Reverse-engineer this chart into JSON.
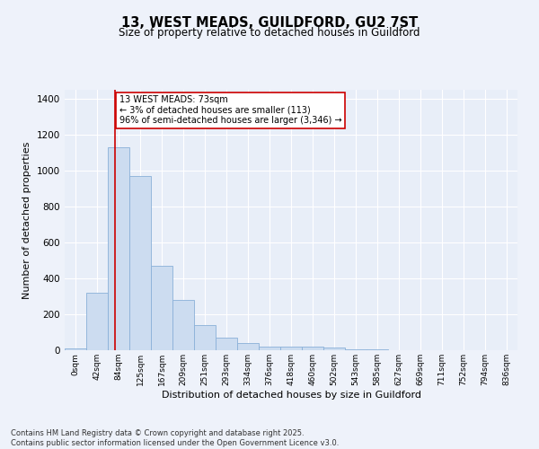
{
  "title_line1": "13, WEST MEADS, GUILDFORD, GU2 7ST",
  "title_line2": "Size of property relative to detached houses in Guildford",
  "xlabel": "Distribution of detached houses by size in Guildford",
  "ylabel": "Number of detached properties",
  "bar_color": "#ccdcf0",
  "bar_edge_color": "#8ab0d8",
  "categories": [
    "0sqm",
    "42sqm",
    "84sqm",
    "125sqm",
    "167sqm",
    "209sqm",
    "251sqm",
    "293sqm",
    "334sqm",
    "376sqm",
    "418sqm",
    "460sqm",
    "502sqm",
    "543sqm",
    "585sqm",
    "627sqm",
    "669sqm",
    "711sqm",
    "752sqm",
    "794sqm",
    "836sqm"
  ],
  "values": [
    10,
    320,
    1130,
    970,
    470,
    280,
    140,
    70,
    42,
    22,
    22,
    22,
    15,
    5,
    3,
    2,
    1,
    1,
    0,
    0,
    0
  ],
  "ylim": [
    0,
    1450
  ],
  "yticks": [
    0,
    200,
    400,
    600,
    800,
    1000,
    1200,
    1400
  ],
  "vline_x": 1.83,
  "annotation_text": "13 WEST MEADS: 73sqm\n← 3% of detached houses are smaller (113)\n96% of semi-detached houses are larger (3,346) →",
  "annotation_box_color": "#ffffff",
  "annotation_box_edge_color": "#cc0000",
  "vline_color": "#cc0000",
  "bg_color": "#e8eef8",
  "fig_bg_color": "#eef2fa",
  "footer_line1": "Contains HM Land Registry data © Crown copyright and database right 2025.",
  "footer_line2": "Contains public sector information licensed under the Open Government Licence v3.0."
}
